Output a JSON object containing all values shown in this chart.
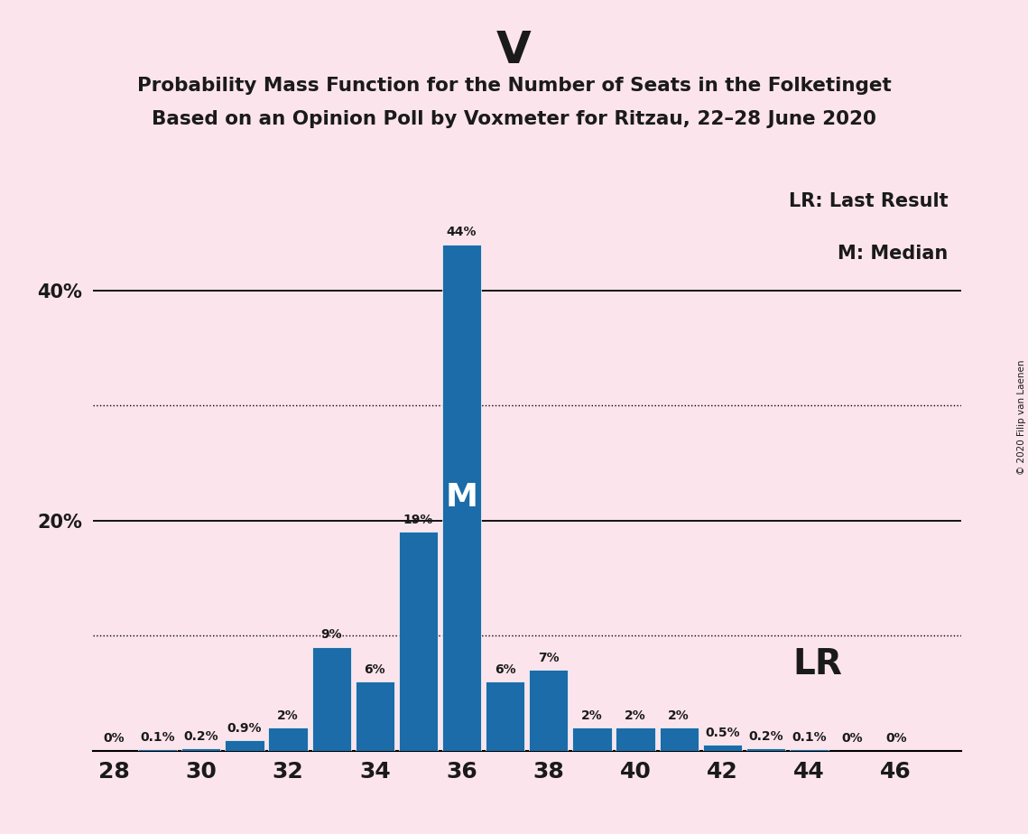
{
  "title_party": "V",
  "title_line1": "Probability Mass Function for the Number of Seats in the Folketinget",
  "title_line2": "Based on an Opinion Poll by Voxmeter for Ritzau, 22–28 June 2020",
  "copyright": "© 2020 Filip van Laenen",
  "legend_lr": "LR: Last Result",
  "legend_m": "M: Median",
  "seats": [
    28,
    29,
    30,
    31,
    32,
    33,
    34,
    35,
    36,
    37,
    38,
    39,
    40,
    41,
    42,
    43,
    44,
    45,
    46
  ],
  "probabilities": [
    0.0,
    0.1,
    0.2,
    0.9,
    2.0,
    9.0,
    6.0,
    19.0,
    44.0,
    6.0,
    7.0,
    2.0,
    2.0,
    2.0,
    0.5,
    0.2,
    0.1,
    0.0,
    0.0
  ],
  "bar_color": "#1b6ca8",
  "bg_color": "#fce4ec",
  "text_color": "#1a1a1a",
  "bar_labels": [
    "0%",
    "0.1%",
    "0.2%",
    "0.9%",
    "2%",
    "9%",
    "6%",
    "19%",
    "44%",
    "6%",
    "7%",
    "2%",
    "2%",
    "2%",
    "0.5%",
    "0.2%",
    "0.1%",
    "0%",
    "0%"
  ],
  "median_seat": 36,
  "lr_seat": 41,
  "ylim": [
    0,
    50
  ],
  "xlim": [
    27.5,
    47.5
  ],
  "xlabel_ticks": [
    28,
    30,
    32,
    34,
    36,
    38,
    40,
    42,
    44,
    46
  ],
  "ytick_positions": [
    20,
    40
  ],
  "ytick_labels": [
    "20%",
    "40%"
  ],
  "grid_solid": [
    20,
    40
  ],
  "grid_dotted": [
    10,
    30
  ],
  "bar_width": 0.9
}
